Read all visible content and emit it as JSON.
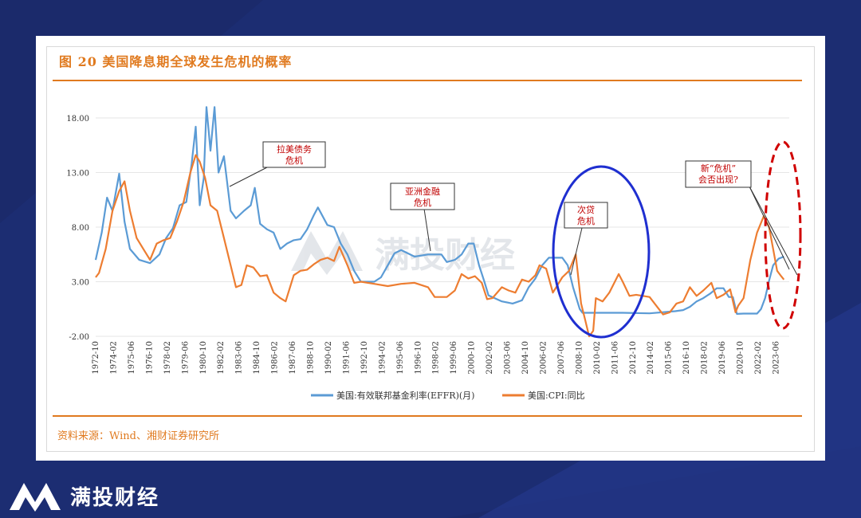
{
  "figure": {
    "title": "图 20  美国降息期全球发生危机的概率",
    "source": "资料来源：Wind、湘财证券研究所"
  },
  "brand": {
    "name": "满投财经",
    "watermark": "满投财经"
  },
  "colors": {
    "background": "#1b2a6b",
    "accent": "#e07a1f",
    "effr": "#5b9bd5",
    "cpi": "#ed7d31",
    "annotation": "#c00000",
    "circle_blue": "#1f2fd0",
    "ellipse_red": "#d00000"
  },
  "chart_data": {
    "type": "line",
    "title": "",
    "xlabel": "",
    "ylabel": "",
    "ylim": [
      -2,
      20
    ],
    "yticks": [
      "18.00",
      "13.00",
      "8.00",
      "3.00",
      "-2.00"
    ],
    "ytick_values": [
      18,
      13,
      8,
      3,
      -2
    ],
    "x_range": [
      1972.75,
      2024.4
    ],
    "xticks": [
      "1972-10",
      "1974-02",
      "1975-06",
      "1976-10",
      "1978-02",
      "1979-06",
      "1980-10",
      "1982-02",
      "1983-06",
      "1984-10",
      "1986-02",
      "1987-06",
      "1988-10",
      "1990-02",
      "1991-06",
      "1992-10",
      "1994-02",
      "1995-06",
      "1996-10",
      "1998-02",
      "1999-06",
      "2000-10",
      "2002-02",
      "2003-06",
      "2004-10",
      "2006-02",
      "2007-06",
      "2008-10",
      "2010-02",
      "2011-06",
      "2012-10",
      "2014-02",
      "2015-06",
      "2016-10",
      "2018-02",
      "2019-06",
      "2020-10",
      "2022-02",
      "2023-06"
    ],
    "legend_position": "bottom",
    "series": [
      {
        "name": "美国:有效联邦基金利率(EFFR)(月)",
        "x": [
          1972.75,
          1973.2,
          1973.6,
          1974.0,
          1974.5,
          1974.9,
          1975.3,
          1976.0,
          1976.8,
          1977.5,
          1978.0,
          1978.5,
          1979.0,
          1979.5,
          1979.9,
          1980.2,
          1980.5,
          1980.8,
          1981.0,
          1981.3,
          1981.6,
          1981.9,
          1982.3,
          1982.8,
          1983.2,
          1983.8,
          1984.3,
          1984.6,
          1985.0,
          1985.5,
          1986.0,
          1986.5,
          1987.0,
          1987.5,
          1988.0,
          1988.5,
          1989.0,
          1989.3,
          1990.0,
          1990.5,
          1991.0,
          1991.5,
          1992.0,
          1992.5,
          1993.5,
          1994.0,
          1994.5,
          1995.0,
          1995.5,
          1996.5,
          1997.5,
          1998.5,
          1998.9,
          1999.5,
          2000.0,
          2000.5,
          2000.9,
          2001.3,
          2001.7,
          2002.0,
          2003.0,
          2003.8,
          2004.5,
          2005.0,
          2005.5,
          2006.0,
          2006.5,
          2007.5,
          2007.9,
          2008.3,
          2008.8,
          2009.0,
          2010.0,
          2012.0,
          2014.0,
          2015.9,
          2016.5,
          2017.0,
          2017.5,
          2018.0,
          2018.5,
          2019.0,
          2019.5,
          2019.9,
          2020.2,
          2020.5,
          2021.0,
          2022.0,
          2022.3,
          2022.6,
          2022.9,
          2023.2,
          2023.6,
          2024.0
        ],
        "y": [
          5.0,
          7.5,
          10.7,
          9.5,
          12.9,
          8.5,
          6.0,
          5.0,
          4.7,
          5.5,
          7.0,
          7.9,
          10.0,
          10.3,
          13.8,
          17.2,
          10.0,
          12.5,
          19.0,
          15.0,
          19.0,
          13.0,
          14.5,
          9.5,
          8.8,
          9.5,
          10.0,
          11.6,
          8.3,
          7.8,
          7.5,
          6.0,
          6.5,
          6.8,
          6.9,
          7.8,
          9.1,
          9.8,
          8.2,
          8.0,
          6.5,
          5.5,
          4.0,
          3.0,
          3.0,
          3.4,
          4.5,
          5.6,
          5.9,
          5.3,
          5.5,
          5.5,
          4.8,
          5.0,
          5.5,
          6.5,
          6.5,
          4.5,
          3.0,
          1.75,
          1.2,
          1.0,
          1.3,
          2.5,
          3.3,
          4.5,
          5.2,
          5.2,
          4.5,
          2.5,
          0.5,
          0.15,
          0.15,
          0.15,
          0.1,
          0.3,
          0.4,
          0.7,
          1.2,
          1.5,
          1.9,
          2.4,
          2.4,
          1.6,
          1.6,
          0.05,
          0.08,
          0.08,
          0.5,
          1.5,
          3.1,
          4.5,
          5.1,
          5.3
        ]
      },
      {
        "name": "美国:CPI:同比",
        "x": [
          1972.75,
          1973.0,
          1973.5,
          1974.0,
          1974.5,
          1974.9,
          1975.3,
          1975.8,
          1976.3,
          1976.8,
          1977.3,
          1977.8,
          1978.3,
          1978.8,
          1979.3,
          1979.8,
          1980.2,
          1980.5,
          1980.9,
          1981.3,
          1981.8,
          1982.3,
          1982.8,
          1983.2,
          1983.6,
          1984.0,
          1984.5,
          1985.0,
          1985.5,
          1986.0,
          1986.5,
          1986.9,
          1987.5,
          1988.0,
          1988.5,
          1989.0,
          1989.5,
          1990.0,
          1990.5,
          1990.9,
          1991.5,
          1992.0,
          1992.5,
          1993.5,
          1994.5,
          1995.5,
          1996.5,
          1997.5,
          1998.0,
          1998.9,
          1999.5,
          2000.0,
          2000.5,
          2001.0,
          2001.5,
          2001.9,
          2002.3,
          2003.0,
          2003.5,
          2004.0,
          2004.5,
          2005.0,
          2005.5,
          2005.8,
          2006.3,
          2006.8,
          2007.0,
          2007.5,
          2008.0,
          2008.5,
          2008.9,
          2009.2,
          2009.5,
          2009.8,
          2010.0,
          2010.5,
          2011.0,
          2011.7,
          2012.0,
          2012.5,
          2013.0,
          2014.0,
          2015.0,
          2015.5,
          2016.0,
          2016.5,
          2017.0,
          2017.5,
          2018.0,
          2018.6,
          2019.0,
          2019.5,
          2020.0,
          2020.4,
          2020.6,
          2021.0,
          2021.5,
          2022.0,
          2022.5,
          2022.9,
          2023.2,
          2023.5,
          2023.8,
          2024.0
        ],
        "y": [
          3.4,
          3.8,
          6.0,
          9.5,
          11.3,
          12.2,
          9.5,
          7.0,
          6.0,
          5.0,
          6.5,
          6.8,
          7.0,
          8.5,
          10.3,
          13.0,
          14.6,
          14.0,
          12.5,
          10.0,
          9.5,
          7.0,
          4.5,
          2.5,
          2.7,
          4.5,
          4.3,
          3.5,
          3.6,
          2.0,
          1.5,
          1.2,
          3.6,
          4.0,
          4.1,
          4.6,
          5.0,
          5.2,
          4.9,
          6.2,
          4.5,
          2.9,
          3.0,
          2.8,
          2.6,
          2.8,
          2.9,
          2.5,
          1.6,
          1.6,
          2.2,
          3.7,
          3.3,
          3.5,
          2.9,
          1.4,
          1.5,
          2.5,
          2.2,
          2.0,
          3.2,
          3.0,
          3.6,
          4.5,
          4.2,
          2.0,
          2.4,
          3.4,
          4.0,
          5.5,
          1.0,
          -0.5,
          -2.0,
          -1.5,
          1.5,
          1.2,
          2.0,
          3.7,
          3.0,
          1.7,
          1.8,
          1.6,
          0.0,
          0.2,
          1.0,
          1.2,
          2.5,
          1.7,
          2.2,
          2.9,
          1.5,
          1.8,
          2.3,
          0.2,
          0.8,
          1.5,
          5.0,
          7.5,
          9.0,
          8.0,
          6.0,
          4.0,
          3.5,
          3.2
        ]
      }
    ],
    "annotations": [
      {
        "lines": [
          "拉美债务",
          "危机"
        ]
      },
      {
        "lines": [
          "亚洲金融",
          "危机"
        ]
      },
      {
        "lines": [
          "次贷",
          "危机"
        ]
      },
      {
        "lines": [
          "新“危机”",
          "会否出现?"
        ]
      }
    ]
  }
}
